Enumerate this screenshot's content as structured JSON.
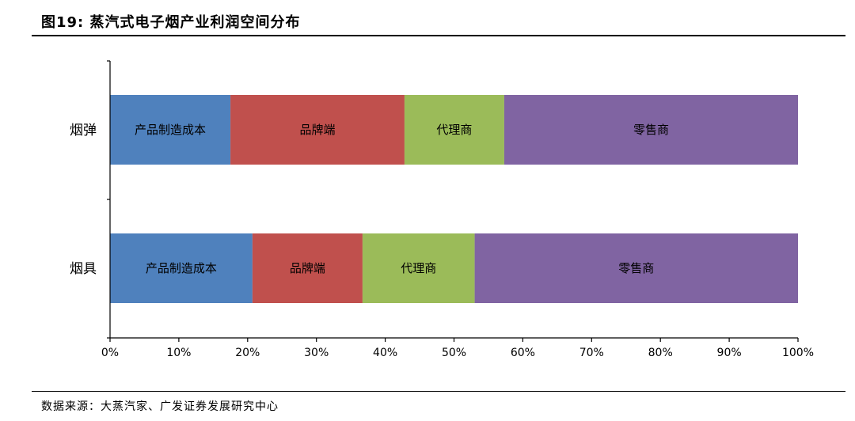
{
  "header": {
    "title": "图19: 蒸汽式电子烟产业利润空间分布"
  },
  "footer": {
    "source": "数据来源：大蒸汽家、广发证券发展研究中心"
  },
  "chart_data": {
    "type": "bar",
    "orientation": "horizontal",
    "stacked": true,
    "categories": [
      "烟弹",
      "烟具"
    ],
    "series": [
      {
        "name": "产品制造成本",
        "color": "#4f81bd",
        "values": [
          17.5,
          20.7
        ]
      },
      {
        "name": "品牌端",
        "color": "#c0504d",
        "values": [
          25.3,
          16.0
        ]
      },
      {
        "name": "代理商",
        "color": "#9bbb59",
        "values": [
          14.5,
          16.3
        ]
      },
      {
        "name": "零售商",
        "color": "#8064a2",
        "values": [
          42.7,
          47.0
        ]
      }
    ],
    "xlim": [
      0,
      100
    ],
    "x_ticks": [
      "0%",
      "10%",
      "20%",
      "30%",
      "40%",
      "50%",
      "60%",
      "70%",
      "80%",
      "90%",
      "100%"
    ],
    "legend": "none",
    "grid": false
  }
}
